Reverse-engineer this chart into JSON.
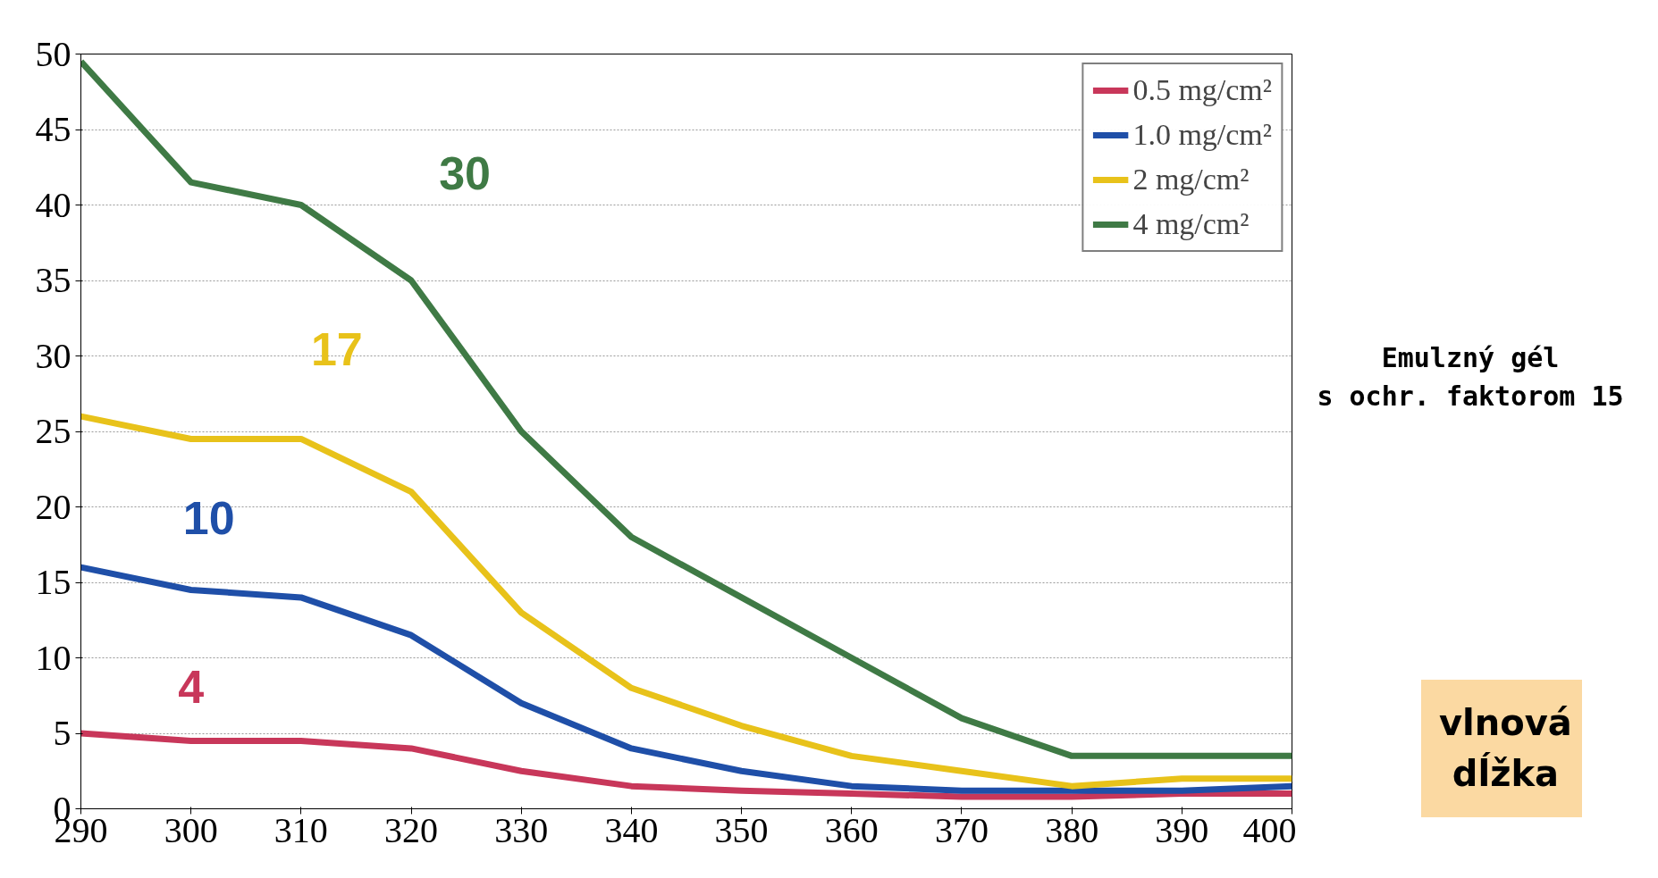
{
  "chart_data": {
    "type": "line",
    "x": [
      290,
      300,
      310,
      320,
      330,
      340,
      350,
      360,
      370,
      380,
      390,
      400
    ],
    "series": [
      {
        "name": "0.5 mg/cm²",
        "color": "#c8375a",
        "values": [
          5,
          4.5,
          4.5,
          4,
          2.5,
          1.5,
          1.2,
          1,
          0.8,
          0.8,
          1,
          1
        ]
      },
      {
        "name": "1.0 mg/cm²",
        "color": "#1f4fa8",
        "values": [
          16,
          14.5,
          14,
          11.5,
          7,
          4,
          2.5,
          1.5,
          1.2,
          1.2,
          1.2,
          1.5
        ]
      },
      {
        "name": "2 mg/cm²",
        "color": "#e8c21a",
        "values": [
          26,
          24.5,
          24.5,
          21,
          13,
          8,
          5.5,
          3.5,
          2.5,
          1.5,
          2,
          2
        ]
      },
      {
        "name": "4 mg/cm²",
        "color": "#3f7a45",
        "values": [
          49.5,
          41.5,
          40,
          35,
          25,
          18,
          14,
          10,
          6,
          3.5,
          3.5,
          3.5
        ]
      }
    ],
    "annotations": [
      "4",
      "10",
      "17",
      "30",
      "Emulzný gél\ns ochr. faktorom 15",
      "vlnová dĺžka"
    ],
    "xlim": [
      290,
      400
    ],
    "xticks": [
      290,
      300,
      310,
      320,
      330,
      340,
      350,
      360,
      370,
      380,
      390,
      400
    ],
    "ylim": [
      0,
      50
    ],
    "yticks": [
      0,
      5,
      10,
      15,
      20,
      25,
      30,
      35,
      40,
      45,
      50
    ],
    "grid": "y",
    "legend": "top right",
    "marker": "none",
    "line_style": "solid"
  }
}
